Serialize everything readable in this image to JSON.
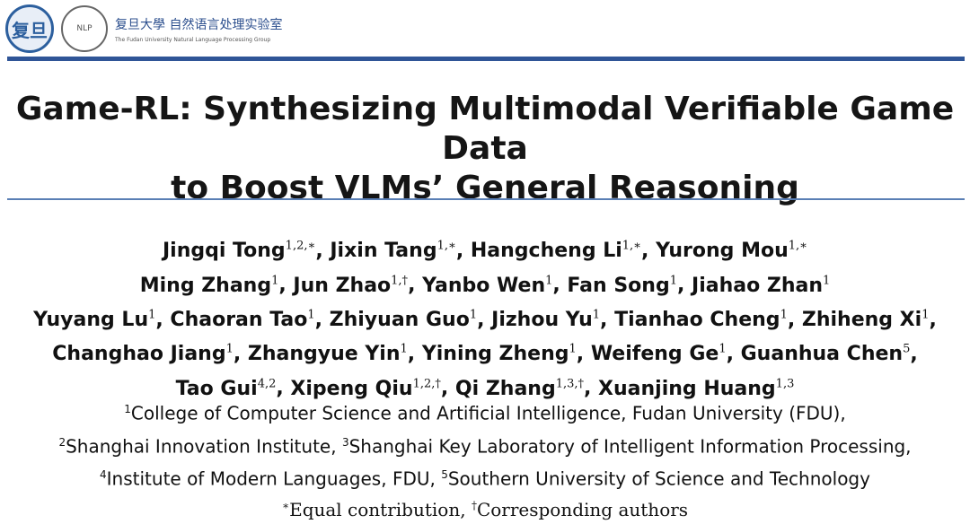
{
  "header": {
    "fudan_seal_text": "复旦",
    "nlp_seal_text": "NLP",
    "lab_name_cn": "复旦大學 自然语言处理实验室",
    "lab_name_en": "The Fudan University Natural Language Processing Group",
    "bar_color": "#2f5597"
  },
  "title": {
    "line1": "Game-RL: Synthesizing Multimodal Verifiable Game Data",
    "line2": "to Boost VLMs’ General Reasoning"
  },
  "authors": [
    [
      {
        "name": "Jingqi Tong",
        "sup": "1,2,∗"
      },
      {
        "name": "Jixin Tang",
        "sup": "1,∗"
      },
      {
        "name": "Hangcheng Li",
        "sup": "1,∗"
      },
      {
        "name": "Yurong Mou",
        "sup": "1,∗"
      }
    ],
    [
      {
        "name": "Ming Zhang",
        "sup": "1"
      },
      {
        "name": "Jun Zhao",
        "sup": "1,†"
      },
      {
        "name": "Yanbo Wen",
        "sup": "1"
      },
      {
        "name": "Fan Song",
        "sup": "1"
      },
      {
        "name": "Jiahao Zhan",
        "sup": "1"
      }
    ],
    [
      {
        "name": "Yuyang Lu",
        "sup": "1"
      },
      {
        "name": "Chaoran Tao",
        "sup": "1"
      },
      {
        "name": "Zhiyuan Guo",
        "sup": "1"
      },
      {
        "name": "Jizhou Yu",
        "sup": "1"
      },
      {
        "name": "Tianhao Cheng",
        "sup": "1"
      },
      {
        "name": "Zhiheng Xi",
        "sup": "1"
      }
    ],
    [
      {
        "name": "Changhao Jiang",
        "sup": "1"
      },
      {
        "name": "Zhangyue Yin",
        "sup": "1"
      },
      {
        "name": "Yining Zheng",
        "sup": "1"
      },
      {
        "name": "Weifeng Ge",
        "sup": "1"
      },
      {
        "name": "Guanhua Chen",
        "sup": "5"
      }
    ],
    [
      {
        "name": "Tao Gui",
        "sup": "4,2"
      },
      {
        "name": "Xipeng Qiu",
        "sup": "1,2,†"
      },
      {
        "name": "Qi Zhang",
        "sup": "1,3,†"
      },
      {
        "name": "Xuanjing Huang",
        "sup": "1,3"
      }
    ]
  ],
  "affiliations": [
    [
      {
        "sup": "1",
        "text": "College of Computer Science and Artificial Intelligence, Fudan University (FDU),"
      }
    ],
    [
      {
        "sup": "2",
        "text": "Shanghai Innovation Institute, "
      },
      {
        "sup": "3",
        "text": "Shanghai Key Laboratory of Intelligent Information Processing,"
      }
    ],
    [
      {
        "sup": "4",
        "text": "Institute of Modern Languages, FDU, "
      },
      {
        "sup": "5",
        "text": "Southern University of Science and Technology"
      }
    ]
  ],
  "notes": [
    {
      "sup": "∗",
      "text": "Equal contribution, "
    },
    {
      "sup": "†",
      "text": "Corresponding authors"
    }
  ]
}
